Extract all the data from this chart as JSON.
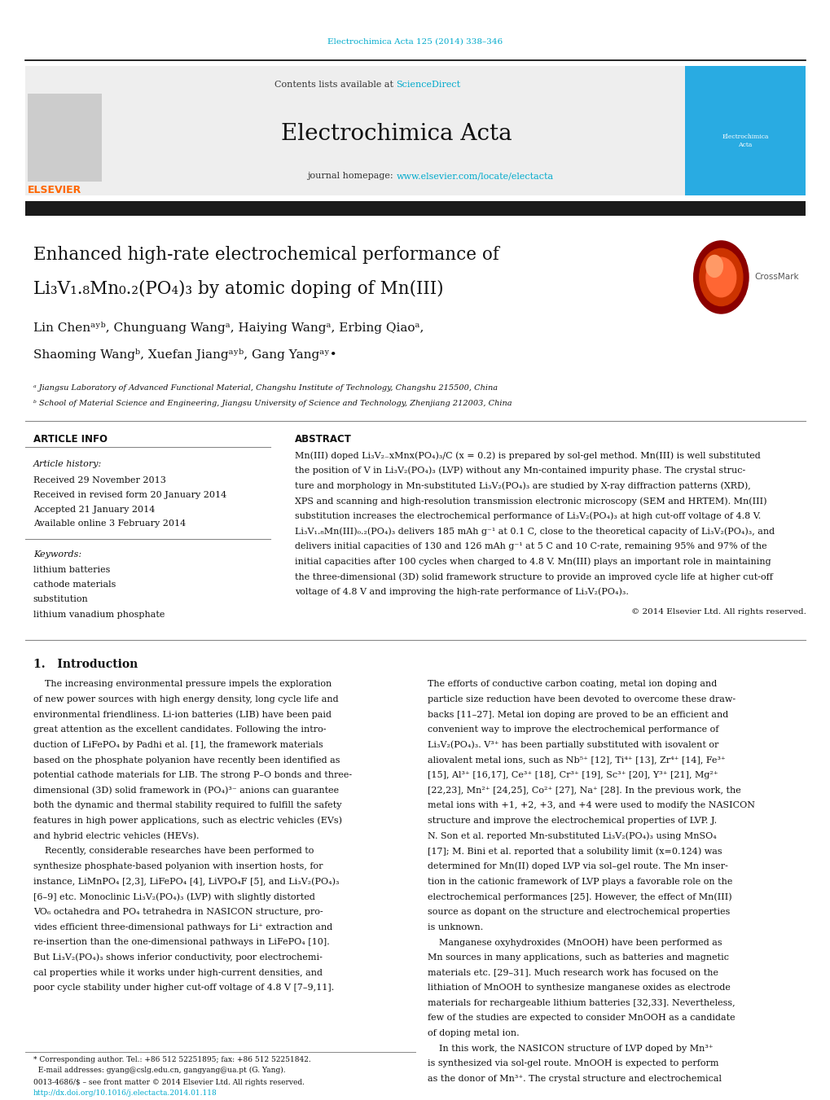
{
  "page_width": 10.2,
  "page_height": 13.51,
  "bg_color": "#ffffff",
  "header_citation": "Electrochimica Acta 125 (2014) 338–346",
  "header_citation_color": "#00aacc",
  "journal_name": "Electrochimica Acta",
  "contents_text": "Contents lists available at ",
  "science_direct": "ScienceDirect",
  "journal_homepage_text": "journal homepage: ",
  "journal_url": "www.elsevier.com/locate/electacta",
  "link_color": "#00aacc",
  "title_line1": "Enhanced high-rate electrochemical performance of",
  "title_line2": "Li₃V₁.₈Mn₀.₂(PO₄)₃ by atomic doping of Mn(III)",
  "affil1": "ᵃ Jiangsu Laboratory of Advanced Functional Material, Changshu Institute of Technology, Changshu 215500, China",
  "affil2": "ᵇ School of Material Science and Engineering, Jiangsu University of Science and Technology, Zhenjiang 212003, China",
  "section_article_info": "ARTICLE INFO",
  "section_abstract": "ABSTRACT",
  "article_history_label": "Article history:",
  "received": "Received 29 November 2013",
  "received_revised": "Received in revised form 20 January 2014",
  "accepted": "Accepted 21 January 2014",
  "available_online": "Available online 3 February 2014",
  "keywords_label": "Keywords:",
  "keywords": [
    "lithium batteries",
    "cathode materials",
    "substitution",
    "lithium vanadium phosphate"
  ],
  "copyright": "© 2014 Elsevier Ltd. All rights reserved.",
  "intro_heading": "1.   Introduction"
}
